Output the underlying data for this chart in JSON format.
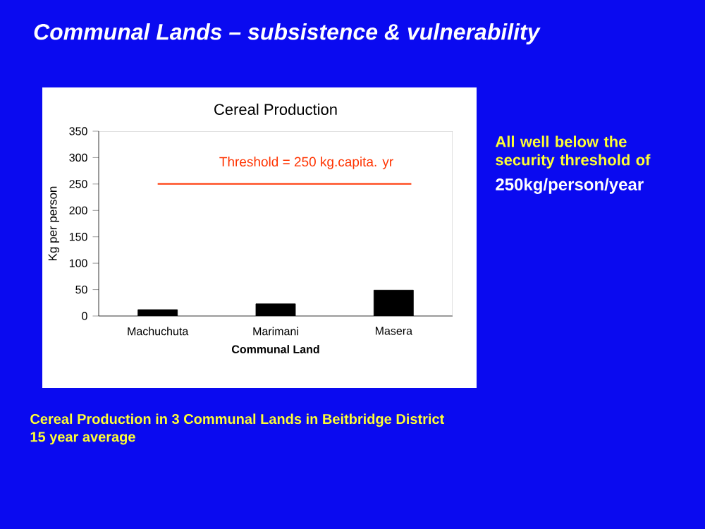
{
  "chart_data": {
    "type": "bar",
    "title": "Cereal Production",
    "xlabel": "Communal Land",
    "ylabel": "Kg per person",
    "categories": [
      "Machuchuta",
      "Marimani",
      "Masera"
    ],
    "values": [
      12,
      23,
      49
    ],
    "color": "#000000",
    "ylim": [
      0,
      350
    ],
    "yticks": [
      0,
      50,
      100,
      150,
      200,
      250,
      300,
      350
    ],
    "ref_lines": [
      {
        "axis": "y",
        "value": 250,
        "label": "Threshold = 250 kg.capita. yr",
        "color": "#ff3300"
      }
    ],
    "annotations": [
      "Communal Lands – subsistence & vulnerability",
      "All well below the security threshold of",
      "250kg/person/year",
      "Cereal Production in 3 Communal Lands in Beitbridge District",
      "15 year average"
    ]
  }
}
